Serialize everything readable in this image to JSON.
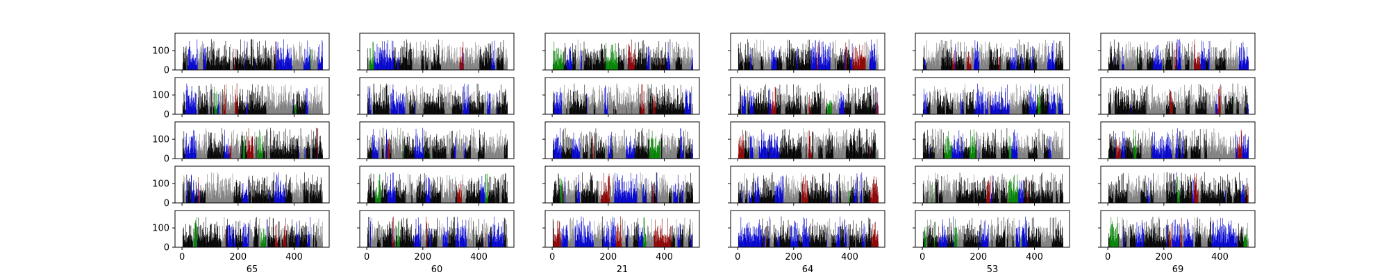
{
  "chart_data": {
    "type": "bar",
    "layout": {
      "rows": 5,
      "cols": 6
    },
    "column_labels": [
      "65",
      "60",
      "21",
      "64",
      "53",
      "69"
    ],
    "x_range": [
      -25,
      525
    ],
    "x_ticks": [
      0,
      200,
      400
    ],
    "x_tick_labels": [
      "0",
      "200",
      "400"
    ],
    "y_range": [
      0,
      190
    ],
    "y_ticks": [
      0,
      100
    ],
    "y_tick_labels": [
      "0",
      "100"
    ],
    "bars_per_panel": 500,
    "bar_colors": [
      "#000000",
      "#7f7f7f",
      "#0000cc",
      "#8b0000",
      "#008000"
    ],
    "bar_value_range": [
      20,
      160
    ],
    "grid": false,
    "legend": "none",
    "shared_axes": true
  }
}
